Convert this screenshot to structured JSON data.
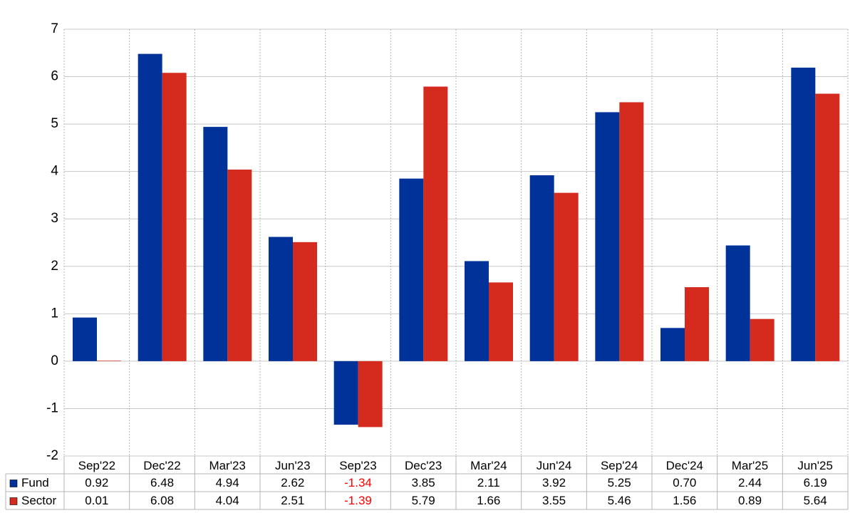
{
  "chart_data": {
    "type": "bar",
    "categories": [
      "Sep'22",
      "Dec'22",
      "Mar'23",
      "Jun'23",
      "Sep'23",
      "Dec'23",
      "Mar'24",
      "Jun'24",
      "Sep'24",
      "Dec'24",
      "Mar'25",
      "Jun'25"
    ],
    "series": [
      {
        "name": "Fund",
        "color": "#003299",
        "values": [
          0.92,
          6.48,
          4.94,
          2.62,
          -1.34,
          3.85,
          2.11,
          3.92,
          5.25,
          0.7,
          2.44,
          6.19
        ],
        "value_labels": [
          "0.92",
          "6.48",
          "4.94",
          "2.62",
          "-1.34",
          "3.85",
          "2.11",
          "3.92",
          "5.25",
          "0.70",
          "2.44",
          "6.19"
        ]
      },
      {
        "name": "Sector",
        "color": "#d52b1e",
        "values": [
          0.01,
          6.08,
          4.04,
          2.51,
          -1.39,
          5.79,
          1.66,
          3.55,
          5.46,
          1.56,
          0.89,
          5.64
        ],
        "value_labels": [
          "0.01",
          "6.08",
          "4.04",
          "2.51",
          "-1.39",
          "5.79",
          "1.66",
          "3.55",
          "5.46",
          "1.56",
          "0.89",
          "5.64"
        ]
      }
    ],
    "ylim": [
      -2,
      7
    ],
    "yticks": [
      -2,
      -1,
      0,
      1,
      2,
      3,
      4,
      5,
      6,
      7
    ],
    "grid": true,
    "negative_label_color": "#ff0000"
  }
}
